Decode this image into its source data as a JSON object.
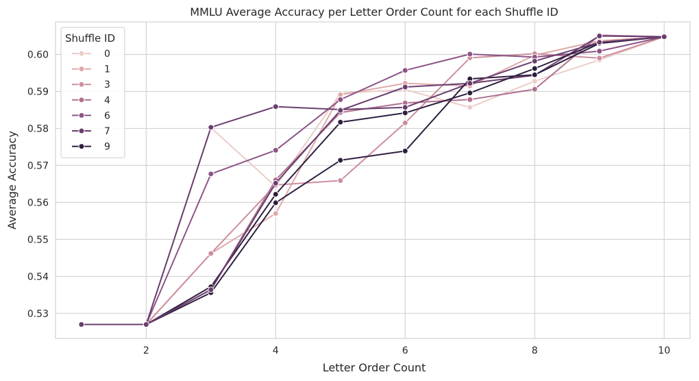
{
  "chart_data": {
    "type": "line",
    "title": "MMLU Average Accuracy per Letter Order Count for each Shuffle ID",
    "xlabel": "Letter Order Count",
    "ylabel": "Average Accuracy",
    "xlim": [
      0.6,
      10.4
    ],
    "ylim": [
      0.5232,
      0.6088
    ],
    "xticks": [
      2,
      4,
      6,
      8,
      10
    ],
    "yticks": [
      0.53,
      0.54,
      0.55,
      0.56,
      0.57,
      0.58,
      0.59,
      0.6
    ],
    "ytick_labels": [
      "0.53",
      "0.54",
      "0.55",
      "0.56",
      "0.57",
      "0.58",
      "0.59",
      "0.60"
    ],
    "grid": true,
    "legend": {
      "title": "Shuffle ID",
      "position": "top-left"
    },
    "x": [
      1,
      2,
      3,
      4,
      5,
      6,
      7,
      8,
      9,
      10
    ],
    "series": [
      {
        "name": "0",
        "color": "#ebcdc8",
        "values": [
          0.527,
          0.527,
          0.5802,
          0.5643,
          0.5895,
          0.5905,
          0.5857,
          0.5928,
          0.5985,
          0.6048
        ]
      },
      {
        "name": "1",
        "color": "#deaaa9",
        "values": [
          0.527,
          0.527,
          0.5462,
          0.557,
          0.5891,
          0.5922,
          0.5915,
          0.5998,
          0.6037,
          0.6048
        ]
      },
      {
        "name": "3",
        "color": "#cc8e9c",
        "values": [
          0.527,
          0.527,
          0.5462,
          0.5647,
          0.5659,
          0.5815,
          0.5991,
          0.6002,
          0.599,
          0.6048
        ]
      },
      {
        "name": "4",
        "color": "#b0718f",
        "values": [
          0.527,
          0.527,
          0.5364,
          0.5661,
          0.5843,
          0.5869,
          0.5878,
          0.5906,
          0.6052,
          0.6048
        ]
      },
      {
        "name": "6",
        "color": "#8c5486",
        "values": [
          0.527,
          0.527,
          0.5677,
          0.5741,
          0.5878,
          0.5957,
          0.6001,
          0.5993,
          0.6009,
          0.6048
        ]
      },
      {
        "name": "7",
        "color": "#693d6e",
        "values": [
          0.527,
          0.527,
          0.5803,
          0.5859,
          0.5851,
          0.5857,
          0.5922,
          0.5944,
          0.605,
          0.6048
        ]
      },
      {
        "name": "9",
        "color": "#2d1e3e",
        "values": [
          0.527,
          0.527,
          0.5356,
          0.5599,
          0.5714,
          0.5739,
          0.5934,
          0.5945,
          0.603,
          0.6048
        ]
      },
      {
        "color": "#2d1e3e",
        "values": [
          0.527,
          0.527,
          0.5372,
          0.5622,
          0.5817,
          0.5842,
          0.5896,
          0.5962,
          0.6033,
          0.6048
        ]
      },
      {
        "color": "#693d6e",
        "values": [
          0.527,
          0.527,
          0.5364,
          0.5652,
          0.5849,
          0.5912,
          0.5922,
          0.5982,
          0.6033,
          0.6048
        ]
      }
    ]
  }
}
